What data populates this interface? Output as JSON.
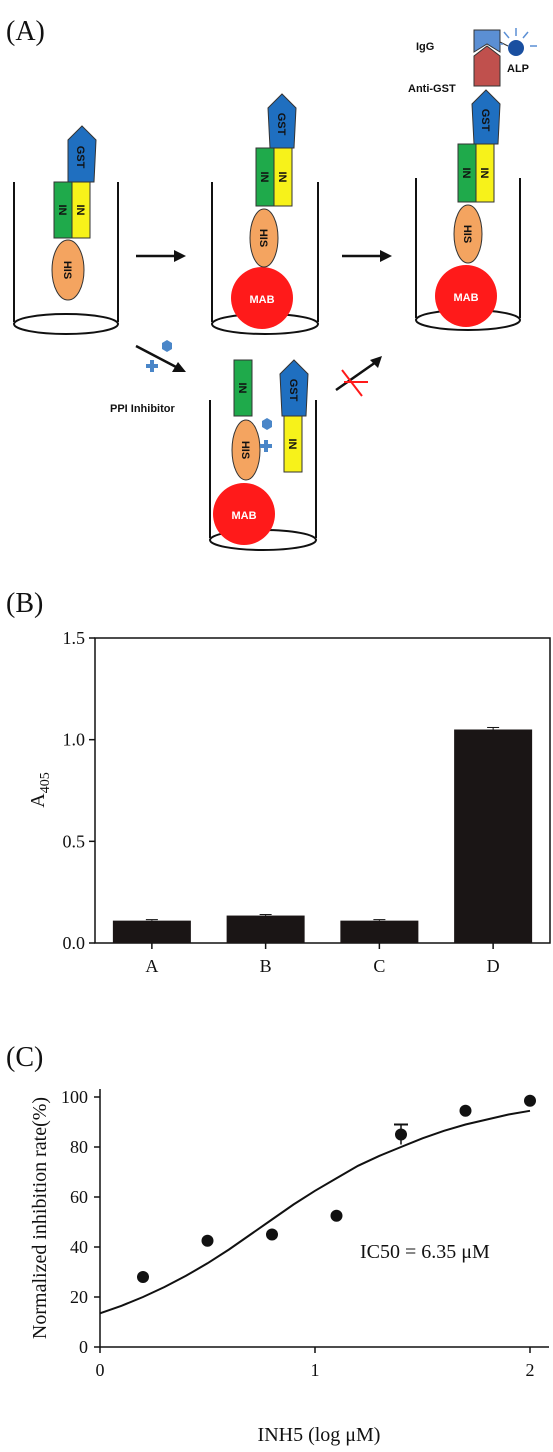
{
  "panels": {
    "a_label": "(A)",
    "b_label": "(B)",
    "c_label": "(C)"
  },
  "diagram": {
    "his": "HIS",
    "in": "IN",
    "gst": "GST",
    "mab": "MAB",
    "igg": "IgG",
    "alp": "ALP",
    "anti_gst": "Anti-GST",
    "ppi_inhibitor": "PPI Inhibitor",
    "colors": {
      "his": "#f4a460",
      "in_green": "#1faa4b",
      "in_yellow": "#f7f21a",
      "gst": "#1f6fc0",
      "mab": "#ff1a1a",
      "alp": "#1a4fa0",
      "igg": "#5b8fd4",
      "anti_gst": "#c0504d",
      "inhibitor": "#4a86c8"
    }
  },
  "chart_data": [
    {
      "type": "bar",
      "panel": "B",
      "categories": [
        "A",
        "B",
        "C",
        "D"
      ],
      "values": [
        0.11,
        0.135,
        0.11,
        1.05
      ],
      "errors": [
        0.005,
        0.005,
        0.005,
        0.01
      ],
      "ylabel_main": "A",
      "ylabel_sub": "405",
      "xlabel": "",
      "ylim": [
        0,
        1.5
      ],
      "yticks": [
        0.0,
        0.5,
        1.0,
        1.5
      ],
      "ytick_labels": [
        "0.0",
        "0.5",
        "1.0",
        "1.5"
      ],
      "color": "#1a1515"
    },
    {
      "type": "scatter",
      "panel": "C",
      "x": [
        0.2,
        0.5,
        0.8,
        1.1,
        1.4,
        1.7,
        2.0
      ],
      "y": [
        28,
        42.5,
        45,
        52.5,
        85,
        94.5,
        98.5
      ],
      "errors": [
        0,
        0,
        0,
        0,
        4,
        0,
        0
      ],
      "fit_curve": {
        "x": [
          0,
          0.1,
          0.2,
          0.3,
          0.4,
          0.5,
          0.6,
          0.7,
          0.8,
          0.9,
          1.0,
          1.1,
          1.2,
          1.3,
          1.4,
          1.5,
          1.6,
          1.7,
          1.8,
          1.9,
          2.0
        ],
        "y": [
          13.5,
          16.5,
          20,
          24,
          28.5,
          33.5,
          39,
          45,
          51,
          57,
          62.5,
          67.5,
          72.5,
          76.5,
          80,
          83.5,
          86.5,
          89,
          91,
          93,
          94.5
        ]
      },
      "annotation": "IC50 = 6.35 μM",
      "xlabel": "INH5 (log μM)",
      "ylabel": "Normalized inhibition rate(%)",
      "xlim": [
        0,
        2
      ],
      "ylim": [
        0,
        100
      ],
      "xticks": [
        0,
        1,
        2
      ],
      "xtick_labels": [
        "0",
        "1",
        "2"
      ],
      "yticks": [
        0,
        20,
        40,
        60,
        80,
        100
      ],
      "ytick_labels": [
        "0",
        "20",
        "40",
        "60",
        "80",
        "100"
      ]
    }
  ]
}
